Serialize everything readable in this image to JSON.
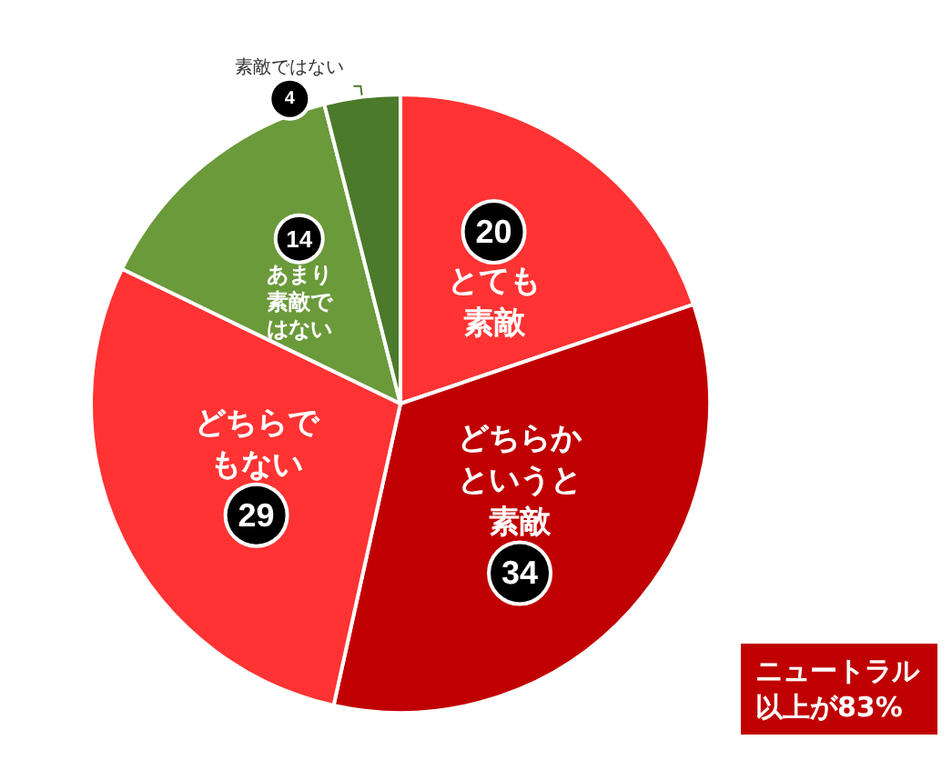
{
  "chart_data": {
    "type": "pie",
    "categories": [
      "とても素敵",
      "どちらかというと素敵",
      "どちらでもない",
      "あまり素敵ではない",
      "素敵ではない"
    ],
    "values": [
      20,
      34,
      29,
      14,
      4
    ],
    "colors": [
      "#ff3333",
      "#c00000",
      "#ff3333",
      "#6a9a3a",
      "#4a7a2a"
    ],
    "data_labels": true,
    "annotations": [
      "ニュートラル以上が83%"
    ]
  }
}
